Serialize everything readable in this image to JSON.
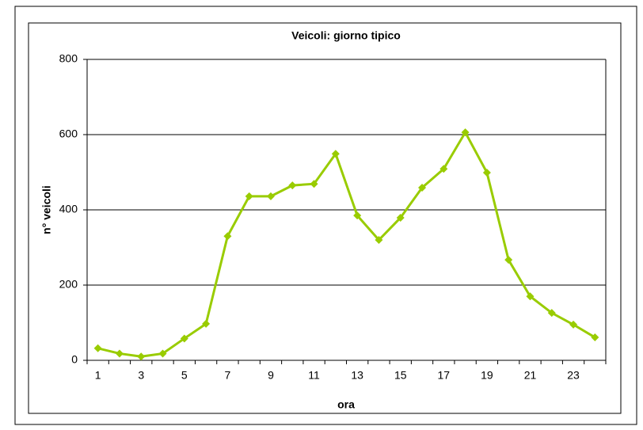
{
  "chart_data": {
    "type": "line",
    "title": "Veicoli: giorno tipico",
    "x_label": "ora",
    "y_label": "n° veicoli",
    "categories": [
      1,
      null,
      3,
      null,
      5,
      null,
      7,
      null,
      9,
      null,
      11,
      null,
      13,
      null,
      15,
      null,
      17,
      null,
      19,
      null,
      21,
      null,
      23,
      null
    ],
    "series": [
      {
        "name": "Veicoli",
        "color": "#99cc00",
        "values": [
          32,
          18,
          10,
          18,
          58,
          97,
          330,
          436,
          436,
          465,
          469,
          549,
          385,
          320,
          379,
          459,
          509,
          606,
          499,
          267,
          170,
          126,
          95,
          61
        ]
      }
    ],
    "ylim": [
      0,
      800
    ],
    "yticks": [
      0,
      200,
      400,
      600,
      800
    ],
    "grid": true
  }
}
